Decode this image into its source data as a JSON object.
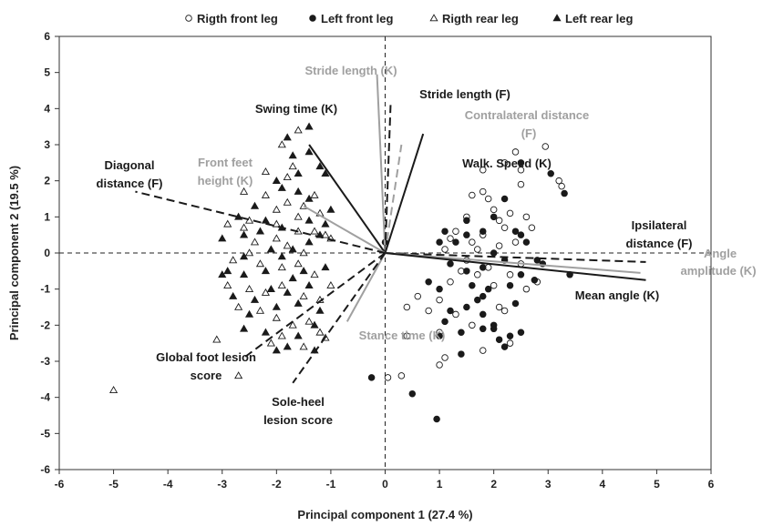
{
  "chart_data": {
    "type": "scatter",
    "title": "",
    "xlabel": "Principal component 1 (27.4 %)",
    "ylabel": "Principal component 2 (19.5 %)",
    "xlim": [
      -6,
      6
    ],
    "ylim": [
      -6,
      6
    ],
    "x_ticks": [
      "-6",
      "-5",
      "-4",
      "-3",
      "-2",
      "-1",
      "0",
      "1",
      "2",
      "3",
      "4",
      "5",
      "6"
    ],
    "y_ticks": [
      "-6",
      "-5",
      "-4",
      "-3",
      "-2",
      "-1",
      "0",
      "1",
      "2",
      "3",
      "4",
      "5",
      "6"
    ],
    "grid": false,
    "legend_position": "top",
    "colors": {
      "black": "#1a1a1a",
      "grey": "#a0a0a0"
    },
    "series": [
      {
        "name": "Rigth front leg",
        "marker": "open-circle",
        "points": [
          [
            2.95,
            2.95
          ],
          [
            3.2,
            2.0
          ],
          [
            3.25,
            1.85
          ],
          [
            2.4,
            2.8
          ],
          [
            2.5,
            2.3
          ],
          [
            2.5,
            1.9
          ],
          [
            2.2,
            2.5
          ],
          [
            1.8,
            2.3
          ],
          [
            1.8,
            1.7
          ],
          [
            1.9,
            1.5
          ],
          [
            2.0,
            1.2
          ],
          [
            1.6,
            1.6
          ],
          [
            1.5,
            1.0
          ],
          [
            2.1,
            0.9
          ],
          [
            2.3,
            1.1
          ],
          [
            2.6,
            1.0
          ],
          [
            2.7,
            0.7
          ],
          [
            2.2,
            0.7
          ],
          [
            1.8,
            0.5
          ],
          [
            1.6,
            0.3
          ],
          [
            1.3,
            0.6
          ],
          [
            1.2,
            0.4
          ],
          [
            1.1,
            0.1
          ],
          [
            1.7,
            0.1
          ],
          [
            2.1,
            0.2
          ],
          [
            2.4,
            0.3
          ],
          [
            1.5,
            -0.2
          ],
          [
            1.9,
            -0.4
          ],
          [
            1.7,
            -0.6
          ],
          [
            2.0,
            -0.9
          ],
          [
            2.3,
            -0.6
          ],
          [
            2.6,
            -1.0
          ],
          [
            2.5,
            -0.3
          ],
          [
            1.4,
            -0.5
          ],
          [
            1.2,
            -0.8
          ],
          [
            1.0,
            -1.3
          ],
          [
            0.6,
            -1.2
          ],
          [
            0.4,
            -1.5
          ],
          [
            0.8,
            -1.6
          ],
          [
            1.3,
            -1.7
          ],
          [
            0.4,
            -2.3
          ],
          [
            1.0,
            -2.2
          ],
          [
            1.6,
            -2.0
          ],
          [
            2.2,
            -1.6
          ],
          [
            2.3,
            -2.5
          ],
          [
            1.8,
            -2.7
          ],
          [
            1.1,
            -2.9
          ],
          [
            1.0,
            -3.1
          ],
          [
            0.3,
            -3.4
          ],
          [
            0.05,
            -3.45
          ],
          [
            2.1,
            -1.5
          ],
          [
            2.8,
            -0.8
          ]
        ]
      },
      {
        "name": "Left front leg",
        "marker": "filled-circle",
        "points": [
          [
            3.3,
            1.65
          ],
          [
            3.05,
            2.2
          ],
          [
            2.5,
            2.5
          ],
          [
            2.2,
            1.5
          ],
          [
            1.5,
            0.9
          ],
          [
            2.0,
            1.0
          ],
          [
            2.4,
            0.6
          ],
          [
            2.5,
            0.5
          ],
          [
            2.6,
            0.3
          ],
          [
            2.8,
            -0.2
          ],
          [
            2.2,
            -0.2
          ],
          [
            2.0,
            0.0
          ],
          [
            1.8,
            0.6
          ],
          [
            1.5,
            0.5
          ],
          [
            1.3,
            0.3
          ],
          [
            1.1,
            0.6
          ],
          [
            1.0,
            0.3
          ],
          [
            0.0,
            0.3
          ],
          [
            1.2,
            -0.3
          ],
          [
            1.5,
            -0.5
          ],
          [
            1.8,
            -0.4
          ],
          [
            1.6,
            -0.9
          ],
          [
            1.8,
            -1.2
          ],
          [
            1.9,
            -1.0
          ],
          [
            2.4,
            -1.4
          ],
          [
            2.5,
            -2.2
          ],
          [
            2.0,
            -2.0
          ],
          [
            1.8,
            -1.7
          ],
          [
            1.7,
            -1.3
          ],
          [
            1.5,
            -1.5
          ],
          [
            1.2,
            -1.6
          ],
          [
            1.0,
            -1.0
          ],
          [
            0.8,
            -0.8
          ],
          [
            1.1,
            -1.9
          ],
          [
            1.0,
            -2.3
          ],
          [
            1.4,
            -2.2
          ],
          [
            1.8,
            -2.1
          ],
          [
            2.0,
            -2.1
          ],
          [
            2.1,
            -2.4
          ],
          [
            2.2,
            -2.6
          ],
          [
            2.3,
            -2.3
          ],
          [
            1.4,
            -2.8
          ],
          [
            0.5,
            -3.9
          ],
          [
            0.95,
            -4.6
          ],
          [
            -0.25,
            -3.45
          ],
          [
            3.4,
            -0.6
          ],
          [
            2.75,
            -0.75
          ],
          [
            2.3,
            -0.9
          ],
          [
            2.9,
            -0.3
          ],
          [
            2.5,
            -0.6
          ]
        ]
      },
      {
        "name": "Rigth rear leg",
        "marker": "open-triangle",
        "points": [
          [
            -5.0,
            -3.8
          ],
          [
            -3.1,
            -2.4
          ],
          [
            -2.7,
            -3.4
          ],
          [
            -1.1,
            -2.35
          ],
          [
            -2.2,
            2.25
          ],
          [
            -1.8,
            2.1
          ],
          [
            -1.7,
            2.4
          ],
          [
            -2.6,
            1.7
          ],
          [
            -2.2,
            1.6
          ],
          [
            -2.0,
            1.2
          ],
          [
            -1.8,
            1.4
          ],
          [
            -1.5,
            1.3
          ],
          [
            -1.3,
            1.6
          ],
          [
            -1.2,
            1.1
          ],
          [
            -1.6,
            1.0
          ],
          [
            -2.0,
            0.8
          ],
          [
            -2.5,
            0.9
          ],
          [
            -2.6,
            0.7
          ],
          [
            -2.9,
            0.8
          ],
          [
            -2.4,
            0.3
          ],
          [
            -2.0,
            0.4
          ],
          [
            -1.6,
            0.6
          ],
          [
            -1.3,
            0.6
          ],
          [
            -1.1,
            0.5
          ],
          [
            -1.0,
            0.4
          ],
          [
            -1.8,
            0.2
          ],
          [
            -1.5,
            0.0
          ],
          [
            -2.5,
            0.0
          ],
          [
            -2.8,
            -0.2
          ],
          [
            -2.3,
            -0.3
          ],
          [
            -1.9,
            -0.4
          ],
          [
            -1.6,
            -0.3
          ],
          [
            -1.3,
            -0.6
          ],
          [
            -1.0,
            -0.9
          ],
          [
            -2.9,
            -0.9
          ],
          [
            -2.5,
            -1.0
          ],
          [
            -2.2,
            -1.1
          ],
          [
            -1.9,
            -0.9
          ],
          [
            -1.5,
            -1.2
          ],
          [
            -1.2,
            -1.3
          ],
          [
            -2.7,
            -1.5
          ],
          [
            -2.3,
            -1.6
          ],
          [
            -2.0,
            -1.8
          ],
          [
            -1.7,
            -2.0
          ],
          [
            -1.4,
            -1.9
          ],
          [
            -2.1,
            -2.5
          ],
          [
            -1.9,
            -2.3
          ],
          [
            -1.5,
            -2.6
          ],
          [
            -1.2,
            -2.2
          ],
          [
            -1.9,
            3.0
          ],
          [
            -1.6,
            3.4
          ]
        ]
      },
      {
        "name": "Left rear leg",
        "marker": "filled-triangle",
        "points": [
          [
            -1.4,
            3.5
          ],
          [
            -1.8,
            3.2
          ],
          [
            -1.7,
            2.7
          ],
          [
            -1.4,
            2.8
          ],
          [
            -1.2,
            2.4
          ],
          [
            -1.1,
            2.2
          ],
          [
            -1.6,
            2.2
          ],
          [
            -2.0,
            2.0
          ],
          [
            -1.9,
            1.8
          ],
          [
            -1.6,
            1.7
          ],
          [
            -1.4,
            1.5
          ],
          [
            -1.0,
            1.2
          ],
          [
            -2.4,
            1.3
          ],
          [
            -2.7,
            1.0
          ],
          [
            -2.2,
            0.9
          ],
          [
            -1.9,
            0.7
          ],
          [
            -1.4,
            0.9
          ],
          [
            -1.2,
            0.5
          ],
          [
            -2.6,
            0.5
          ],
          [
            -3.0,
            0.4
          ],
          [
            -2.1,
            0.1
          ],
          [
            -1.7,
            0.1
          ],
          [
            -1.4,
            0.3
          ],
          [
            -2.9,
            -0.5
          ],
          [
            -2.6,
            -0.6
          ],
          [
            -2.2,
            -0.5
          ],
          [
            -1.7,
            -0.7
          ],
          [
            -1.4,
            -0.9
          ],
          [
            -1.1,
            -0.4
          ],
          [
            -2.8,
            -1.2
          ],
          [
            -2.4,
            -1.3
          ],
          [
            -2.0,
            -1.5
          ],
          [
            -1.6,
            -1.4
          ],
          [
            -1.2,
            -1.6
          ],
          [
            -2.6,
            -2.1
          ],
          [
            -2.2,
            -2.2
          ],
          [
            -1.8,
            -2.6
          ],
          [
            -1.6,
            -2.3
          ],
          [
            -1.3,
            -2.0
          ],
          [
            -2.0,
            -2.7
          ],
          [
            -3.0,
            -0.6
          ],
          [
            -2.3,
            0.6
          ],
          [
            -1.9,
            -0.1
          ],
          [
            -1.8,
            -1.1
          ],
          [
            -2.6,
            -0.1
          ],
          [
            -1.5,
            -0.5
          ],
          [
            -2.1,
            -1.0
          ],
          [
            -1.3,
            -2.7
          ],
          [
            -1.1,
            0.8
          ],
          [
            -2.5,
            -1.7
          ]
        ]
      }
    ],
    "vectors": [
      {
        "label": "Stride length (K)",
        "x": -0.15,
        "y": 4.95,
        "color": "grey",
        "style": "solid"
      },
      {
        "label": "Stride length (F)",
        "x": 0.1,
        "y": 4.1,
        "color": "black",
        "style": "dashed"
      },
      {
        "label": "Contralateral distance (F)",
        "x": 0.3,
        "y": 3.0,
        "color": "grey",
        "style": "dashed"
      },
      {
        "label": "Walk. Speed (K)",
        "x": 0.7,
        "y": 3.3,
        "color": "black",
        "style": "solid"
      },
      {
        "label": "Swing time (K)",
        "x": -1.4,
        "y": 3.0,
        "color": "black",
        "style": "solid"
      },
      {
        "label": "Front feet height (K)",
        "x": -1.5,
        "y": 1.3,
        "color": "grey",
        "style": "solid"
      },
      {
        "label": "Diagonal distance (F)",
        "x": -4.6,
        "y": 1.7,
        "color": "black",
        "style": "dashed"
      },
      {
        "label": "Ipsilateral distance (F)",
        "x": 4.8,
        "y": -0.25,
        "color": "black",
        "style": "dashed"
      },
      {
        "label": "Angle amplitude (K)",
        "x": 4.7,
        "y": -0.55,
        "color": "grey",
        "style": "solid"
      },
      {
        "label": "Mean angle (K)",
        "x": 4.8,
        "y": -0.75,
        "color": "black",
        "style": "solid"
      },
      {
        "label": "Stance time (K)",
        "x": -0.7,
        "y": -1.9,
        "color": "grey",
        "style": "solid"
      },
      {
        "label": "Global foot lesion score",
        "x": -2.6,
        "y": -2.9,
        "color": "black",
        "style": "dashed"
      },
      {
        "label": "Sole-heel lesion score",
        "x": -1.7,
        "y": -3.6,
        "color": "black",
        "style": "dashed"
      }
    ]
  }
}
